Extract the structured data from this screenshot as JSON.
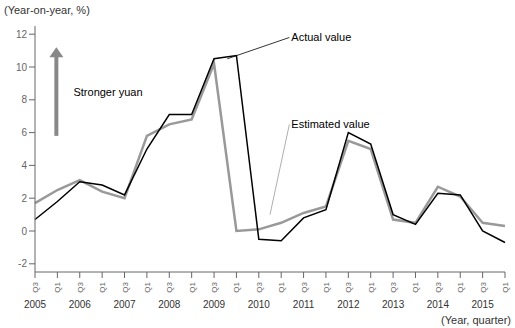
{
  "chart_data": {
    "type": "line",
    "y_label": "(Year-on-year, %)",
    "x_label": "(Year, quarter)",
    "categories": [
      "Q3",
      "Q1",
      "Q3",
      "Q1",
      "Q3",
      "Q1",
      "Q3",
      "Q1",
      "Q3",
      "Q1",
      "Q3",
      "Q1",
      "Q3",
      "Q1",
      "Q3",
      "Q1",
      "Q3",
      "Q1",
      "Q3",
      "Q1",
      "Q3",
      "Q1"
    ],
    "year_labels": [
      "2005",
      null,
      "2006",
      null,
      "2007",
      null,
      "2008",
      null,
      "2009",
      null,
      "2010",
      null,
      "2011",
      null,
      "2012",
      null,
      "2013",
      null,
      "2014",
      null,
      "2015",
      null
    ],
    "series": [
      {
        "name": "Actual value",
        "color": "#000000",
        "values": [
          0.7,
          1.8,
          3.0,
          2.8,
          2.2,
          5.0,
          7.1,
          7.1,
          10.5,
          10.7,
          -0.5,
          -0.6,
          0.8,
          1.3,
          6.0,
          5.3,
          1.0,
          0.4,
          2.3,
          2.2,
          0.0,
          -0.7
        ]
      },
      {
        "name": "Estimated value",
        "color": "#999999",
        "values": [
          1.7,
          2.5,
          3.1,
          2.4,
          2.0,
          5.8,
          6.5,
          6.8,
          10.2,
          0.0,
          0.1,
          0.5,
          1.1,
          1.5,
          5.5,
          5.0,
          0.7,
          0.5,
          2.7,
          2.1,
          0.5,
          0.3
        ]
      }
    ],
    "annotations": [
      {
        "text": "Stronger yuan",
        "color": "#888888"
      }
    ],
    "ylim": [
      -2.5,
      12.5
    ],
    "yticks": [
      -2,
      0,
      2,
      4,
      6,
      8,
      10,
      12
    ],
    "grid": false
  }
}
